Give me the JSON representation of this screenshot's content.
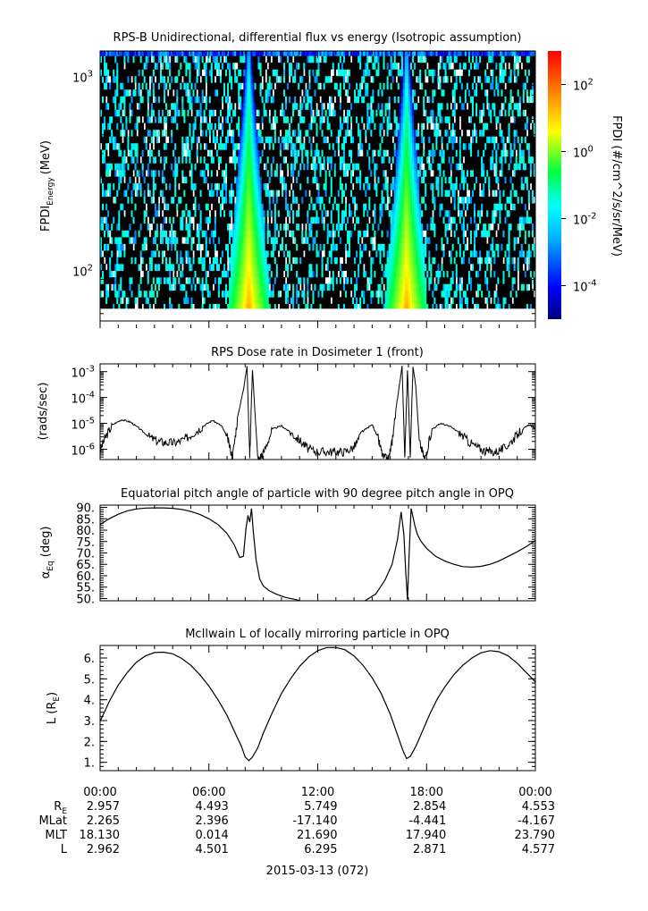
{
  "chart_data": [
    {
      "type": "heatmap",
      "title": "RPS-B  Unidirectional, differential flux vs energy (Isotropic assumption)",
      "ylabel": "FPDI",
      "ylabel_subscript": "Energy",
      "ylabel_unit": "(MeV)",
      "yscale": "log",
      "ylim": [
        55,
        1350
      ],
      "yticks": [
        {
          "value": 100,
          "base": "10",
          "exp": "2"
        },
        {
          "value": 1000,
          "base": "10",
          "exp": "3"
        }
      ],
      "xlim": [
        "00:00",
        "24:00"
      ],
      "energy_channels_mev": [
        60,
        65,
        70,
        76,
        82,
        89,
        96,
        104,
        113,
        122,
        132,
        143,
        155,
        168,
        182,
        197,
        213,
        231,
        250,
        271,
        293,
        317,
        343,
        372,
        403,
        436,
        472,
        511,
        553,
        599,
        648,
        702,
        760,
        823,
        891,
        965,
        1045,
        1131,
        1225,
        1326
      ],
      "peak_flux_times_hours": [
        8.2,
        16.9
      ],
      "colorbar": {
        "label": "FPDI (#/cm^2/s/sr/MeV)",
        "scale": "log",
        "range": [
          1e-05,
          1000
        ],
        "ticks": [
          {
            "value": 0.0001,
            "base": "10",
            "exp": "-4"
          },
          {
            "value": 0.01,
            "base": "10",
            "exp": "-2"
          },
          {
            "value": 1,
            "base": "10",
            "exp": "0"
          },
          {
            "value": 100,
            "base": "10",
            "exp": "2"
          }
        ]
      }
    },
    {
      "type": "line",
      "title": "RPS  Dose rate in Dosimeter 1 (front)",
      "ylabel": "(rads/sec)",
      "yscale": "log",
      "ylim": [
        4e-07,
        0.002
      ],
      "yticks": [
        {
          "value": 1e-06,
          "base": "10",
          "exp": "-6"
        },
        {
          "value": 1e-05,
          "base": "10",
          "exp": "-5"
        },
        {
          "value": 0.0001,
          "base": "10",
          "exp": "-4"
        },
        {
          "value": 0.001,
          "base": "10",
          "exp": "-3"
        }
      ],
      "x_hours": [
        0,
        0.3,
        0.7,
        1.2,
        1.7,
        2.2,
        2.7,
        3.2,
        3.7,
        4.2,
        4.7,
        5.2,
        5.7,
        6.2,
        6.7,
        7.0,
        7.3,
        7.6,
        7.9,
        8.1,
        8.25,
        8.4,
        8.55,
        8.7,
        9.0,
        9.5,
        10.0,
        10.5,
        11.0,
        11.5,
        12.0,
        12.5,
        13.0,
        13.5,
        14.0,
        14.5,
        15.0,
        15.3,
        15.6,
        15.9,
        16.1,
        16.3,
        16.5,
        16.65,
        16.8,
        16.95,
        17.1,
        17.25,
        17.4,
        17.6,
        17.9,
        18.3,
        18.8,
        19.3,
        19.8,
        20.3,
        20.8,
        21.3,
        21.8,
        22.3,
        22.8,
        23.3,
        23.7,
        24.0
      ],
      "y_rads_per_sec": [
        9e-07,
        3e-06,
        9e-06,
        1.4e-05,
        1.1e-05,
        6e-06,
        3e-06,
        2e-06,
        1.8e-06,
        1.8e-06,
        2.5e-06,
        4.5e-06,
        8e-06,
        1.3e-05,
        8e-06,
        3e-06,
        5e-07,
        2e-05,
        0.0002,
        0.0016,
        5e-07,
        0.0012,
        2e-05,
        4e-07,
        7e-07,
        6e-06,
        8e-06,
        4.5e-06,
        2.2e-06,
        1e-06,
        8e-07,
        8e-07,
        8e-07,
        8e-07,
        1.2e-06,
        5e-06,
        9e-06,
        3e-06,
        5e-07,
        4e-07,
        2e-06,
        3e-05,
        0.0003,
        0.0016,
        5e-07,
        0.0012,
        5e-07,
        0.0016,
        0.0003,
        2e-06,
        4e-07,
        6e-06,
        1e-05,
        7.5e-06,
        4.5e-06,
        2e-06,
        1.2e-06,
        8e-07,
        8e-07,
        1.1e-06,
        2.5e-06,
        6e-06,
        9e-06,
        6e-06
      ]
    },
    {
      "type": "line",
      "title": "Equatorial pitch angle of particle with 90 degree pitch angle in OPQ",
      "ylabel": "α",
      "ylabel_subscript": "Eq",
      "ylabel_unit": " (deg)",
      "ylim": [
        49,
        91
      ],
      "yticks": [
        "50.",
        "55.",
        "60.",
        "65.",
        "70.",
        "75.",
        "80.",
        "85.",
        "90."
      ],
      "x_hours": [
        0,
        0.5,
        1,
        1.5,
        2,
        2.5,
        3,
        3.5,
        4,
        4.5,
        5,
        5.5,
        6,
        6.5,
        7,
        7.4,
        7.7,
        7.9,
        8.05,
        8.15,
        8.25,
        8.35,
        8.45,
        8.6,
        8.8,
        9.0,
        9.3,
        9.7,
        10.2,
        10.8,
        11.5,
        12.2,
        13.0,
        13.8,
        14.6,
        15.2,
        15.7,
        16.1,
        16.4,
        16.6,
        16.75,
        16.85,
        16.95,
        17.05,
        17.15,
        17.25,
        17.35,
        17.5,
        17.7,
        18.0,
        18.5,
        19.0,
        19.5,
        20.0,
        20.5,
        21.0,
        21.5,
        22.0,
        22.5,
        23.0,
        23.5,
        24.0
      ],
      "y_deg": [
        82.5,
        85,
        87,
        88.5,
        89.3,
        89.7,
        89.8,
        89.8,
        89.6,
        89.1,
        88.2,
        86.9,
        85.0,
        82.5,
        78.5,
        73.5,
        68,
        68.5,
        81,
        86.5,
        83.5,
        89.5,
        79,
        67,
        58.5,
        55.5,
        53.5,
        52,
        50.5,
        49.5,
        48,
        47.5,
        47,
        48,
        49,
        52,
        58,
        65,
        76,
        88,
        78,
        62,
        49.5,
        72,
        89.5,
        86,
        82,
        78,
        75,
        72,
        68.5,
        66.5,
        65,
        64,
        63.8,
        64.1,
        65,
        66.5,
        68.5,
        70.5,
        72.8,
        75.5
      ]
    },
    {
      "type": "line",
      "title": "McIlwain L of locally mirroring particle in OPQ",
      "ylabel": "L (R",
      "ylabel_subscript": "E",
      "ylabel_unit": ")",
      "ylim": [
        0.6,
        6.6
      ],
      "yticks": [
        "1.",
        "2.",
        "3.",
        "4.",
        "5.",
        "6."
      ],
      "x_hours": [
        0,
        0.5,
        1,
        1.5,
        2,
        2.5,
        3,
        3.5,
        4,
        4.5,
        5,
        5.5,
        6,
        6.5,
        7,
        7.5,
        7.8,
        8.0,
        8.2,
        8.4,
        8.7,
        9.0,
        9.5,
        10,
        10.5,
        11,
        11.5,
        12,
        12.5,
        13,
        13.5,
        14,
        14.5,
        15,
        15.5,
        16,
        16.4,
        16.7,
        16.9,
        17.1,
        17.4,
        17.8,
        18.2,
        18.6,
        19,
        19.5,
        20,
        20.5,
        21,
        21.5,
        22,
        22.5,
        23,
        23.5,
        24
      ],
      "y_re": [
        2.96,
        3.9,
        4.7,
        5.3,
        5.8,
        6.1,
        6.26,
        6.28,
        6.2,
        5.98,
        5.65,
        5.2,
        4.65,
        4.0,
        3.25,
        2.3,
        1.75,
        1.25,
        1.08,
        1.25,
        1.7,
        2.4,
        3.4,
        4.3,
        5.0,
        5.6,
        6.05,
        6.35,
        6.5,
        6.5,
        6.4,
        6.1,
        5.65,
        5.05,
        4.3,
        3.3,
        2.3,
        1.55,
        1.18,
        1.28,
        1.75,
        2.55,
        3.35,
        4.05,
        4.6,
        5.2,
        5.65,
        6.0,
        6.25,
        6.35,
        6.3,
        6.1,
        5.75,
        5.3,
        4.85
      ]
    }
  ],
  "x_axis": {
    "tick_labels": [
      "00:00",
      "06:00",
      "12:00",
      "18:00",
      "00:00"
    ],
    "tick_hours": [
      0,
      6,
      12,
      18,
      24
    ],
    "date_label": "2015-03-13 (072)"
  },
  "ephemeris": {
    "rows": [
      {
        "label": "R",
        "label_sub": "E",
        "values": [
          "2.957",
          "4.493",
          "5.749",
          "2.854",
          "4.553"
        ]
      },
      {
        "label": "MLat",
        "label_sub": "",
        "values": [
          "2.265",
          "2.396",
          "-17.140",
          "-4.441",
          "-4.167"
        ]
      },
      {
        "label": "MLT",
        "label_sub": "",
        "values": [
          "18.130",
          "0.014",
          "21.690",
          "17.940",
          "23.790"
        ]
      },
      {
        "label": "L",
        "label_sub": "",
        "values": [
          "2.962",
          "4.501",
          "6.295",
          "2.871",
          "4.577"
        ]
      }
    ]
  }
}
